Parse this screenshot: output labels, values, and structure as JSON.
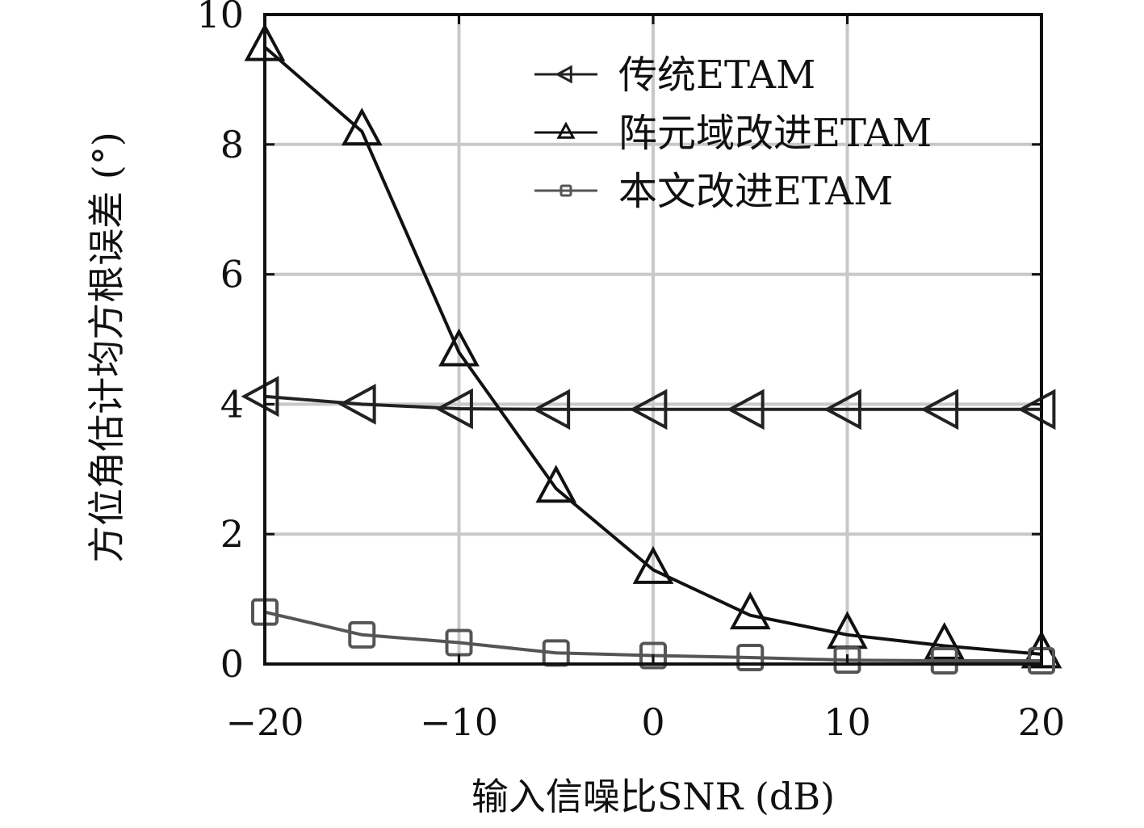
{
  "chart_data": {
    "type": "line",
    "title": "",
    "xlabel": "输入信噪比SNR (dB)",
    "ylabel": "方位角估计均方根误差 (°)",
    "xlim": [
      -20,
      20
    ],
    "ylim": [
      0,
      10
    ],
    "xticks": [
      -20,
      -10,
      0,
      10,
      20
    ],
    "xtick_labels": [
      "−20",
      "−10",
      "0",
      "10",
      "20"
    ],
    "yticks": [
      0,
      2,
      4,
      6,
      8,
      10
    ],
    "ytick_labels": [
      "0",
      "2",
      "4",
      "6",
      "8",
      "10"
    ],
    "grid": true,
    "legend_position": "top-right",
    "x": [
      -20,
      -15,
      -10,
      -5,
      0,
      5,
      10,
      15,
      20
    ],
    "series": [
      {
        "name": "传统ETAM",
        "marker": "triangle-left",
        "color": "#222222",
        "values": [
          4.12,
          4.0,
          3.93,
          3.92,
          3.92,
          3.92,
          3.92,
          3.92,
          3.92
        ]
      },
      {
        "name": "阵元域改进ETAM",
        "marker": "triangle-up",
        "color": "#111111",
        "values": [
          9.5,
          8.2,
          4.8,
          2.7,
          1.45,
          0.75,
          0.45,
          0.28,
          0.15
        ]
      },
      {
        "name": "本文改进ETAM",
        "marker": "square",
        "color": "#555555",
        "values": [
          0.8,
          0.45,
          0.33,
          0.17,
          0.13,
          0.1,
          0.06,
          0.05,
          0.05
        ]
      }
    ]
  }
}
